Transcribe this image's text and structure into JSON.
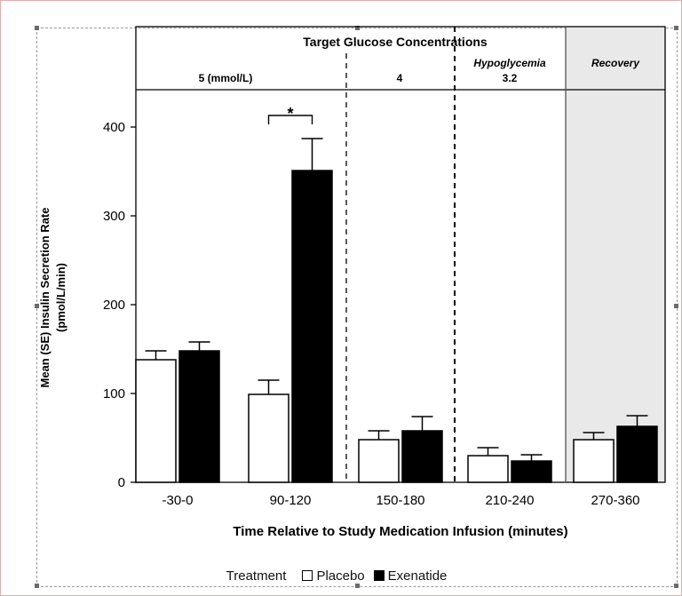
{
  "chart_data": {
    "type": "bar",
    "header_title": "Target Glucose Concentrations",
    "phases": [
      {
        "label": "5 (mmol/L)"
      },
      {
        "label": "4"
      },
      {
        "label": "3.2",
        "sublabel": "Hypoglycemia"
      },
      {
        "label": "Recovery"
      }
    ],
    "categories": [
      "-30-0",
      "90-120",
      "150-180",
      "210-240",
      "270-360"
    ],
    "series": [
      {
        "name": "Placebo",
        "values": [
          138,
          99,
          48,
          30,
          48
        ],
        "errors": [
          10,
          16,
          10,
          9,
          8
        ],
        "color": "#ffffff"
      },
      {
        "name": "Exenatide",
        "values": [
          148,
          351,
          58,
          24,
          63
        ],
        "errors": [
          10,
          36,
          16,
          7,
          12
        ],
        "color": "#000000"
      }
    ],
    "annotation": "*",
    "xlabel": "Time Relative to Study Medication Infusion (minutes)",
    "ylabel": "Mean (SE) Insulin Secretion Rate (pmol/L/min)",
    "ylabel_lines": [
      "Mean (SE) Insulin Secretion Rate",
      "(pmol/L/min)"
    ],
    "yticks": [
      0,
      100,
      200,
      300,
      400
    ],
    "ylim": [
      0,
      440
    ],
    "legend": {
      "title": "Treatment",
      "placement": "bottom-center"
    },
    "grid": false
  }
}
